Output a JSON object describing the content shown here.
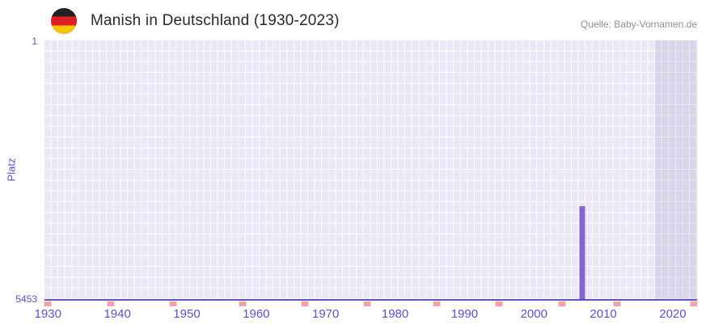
{
  "chart_data": {
    "type": "bar",
    "title": "Manish in Deutschland (1930-2023)",
    "source": "Quelle: Baby-Vornamen.de",
    "ylabel": "Platz",
    "y_axis": {
      "top_label": "1",
      "bottom_label": "5453",
      "min": 1,
      "max": 5453,
      "inverted": true
    },
    "x_axis": {
      "min": 1930,
      "max": 2023,
      "ticks": [
        1930,
        1940,
        1950,
        1960,
        1970,
        1980,
        1990,
        2000,
        2010,
        2020
      ]
    },
    "series": [
      {
        "name": "Platz",
        "points": [
          {
            "year": 2007,
            "rank": 3500
          }
        ]
      }
    ],
    "baseline_marks_years": [
      1930,
      1939,
      1948,
      1958,
      1967,
      1976,
      1986,
      1995,
      2004,
      2012,
      2023
    ],
    "recent_band": {
      "from": 2018,
      "to": 2023
    },
    "legend": null,
    "grid": true,
    "colors": {
      "bar": "#8766cc",
      "axis_text": "#5a54c6",
      "axis_line": "#5a54c6",
      "grid_cell": "#ebe7f6",
      "band_tint": "rgba(99,82,158,0.13)",
      "baseline_mark": "#efa3ab",
      "title": "#28282e",
      "source_text": "#8e8e96"
    },
    "icon": "germany-flag-icon"
  }
}
